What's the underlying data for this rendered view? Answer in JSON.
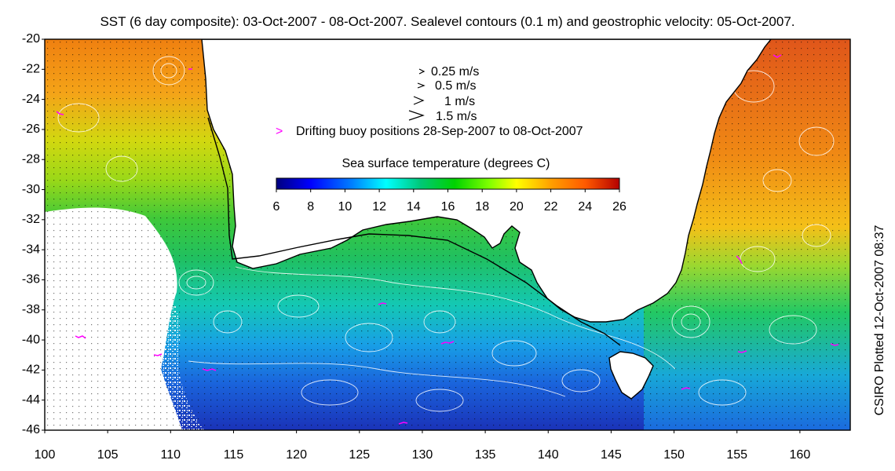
{
  "title": "SST (6 day composite): 03-Oct-2007 - 08-Oct-2007. Sealevel contours (0.1 m) and geostrophic velocity: 05-Oct-2007.",
  "side_label": "CSIRO Plotted 12-Oct-2007 08:37",
  "axes": {
    "x": {
      "min": 100,
      "max": 164,
      "ticks": [
        "100",
        "105",
        "110",
        "115",
        "120",
        "125",
        "130",
        "135",
        "140",
        "145",
        "150",
        "155",
        "160"
      ]
    },
    "y": {
      "min": -46,
      "max": -20,
      "ticks": [
        "-20",
        "-22",
        "-24",
        "-26",
        "-28",
        "-30",
        "-32",
        "-34",
        "-36",
        "-38",
        "-40",
        "-42",
        "-44",
        "-46"
      ]
    }
  },
  "velocity_legend": [
    {
      "label": "0.25 m/s",
      "speed": 0.25
    },
    {
      "label": "0.5 m/s",
      "speed": 0.5
    },
    {
      "label": "1 m/s",
      "speed": 1
    },
    {
      "label": "1.5 m/s",
      "speed": 1.5
    }
  ],
  "buoy_legend": {
    "symbol": ">",
    "label": "Drifting buoy positions 28-Sep-2007 to 08-Oct-2007",
    "color": "#ff00ff"
  },
  "colorbar": {
    "title": "Sea surface temperature (degrees C)",
    "min": 6,
    "max": 26,
    "ticks": [
      "6",
      "8",
      "10",
      "12",
      "14",
      "16",
      "18",
      "20",
      "22",
      "24",
      "26"
    ],
    "colors": [
      "#00007f",
      "#0000ff",
      "#007fff",
      "#00ffff",
      "#00c878",
      "#00d200",
      "#7fff00",
      "#ffff00",
      "#ff9f00",
      "#ff5a00",
      "#b40000"
    ]
  },
  "colors": {
    "land": "#ffffff",
    "frame": "#000000",
    "contour": "#ffffff",
    "vector": "#000000",
    "buoy": "#ff00ff"
  }
}
